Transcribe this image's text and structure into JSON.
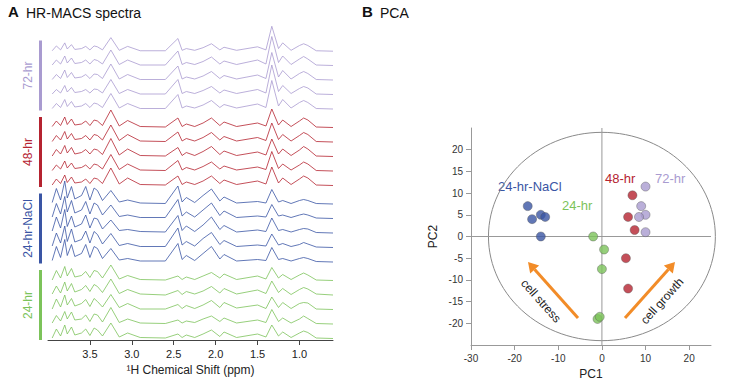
{
  "chart_data": [
    {
      "type": "line",
      "panel_label": "A",
      "title": "HR-MACS spectra",
      "x_label": "¹H Chemical Shift (ppm)",
      "x": [
        3.95,
        3.9,
        3.85,
        3.8,
        3.77,
        3.72,
        3.68,
        3.6,
        3.55,
        3.5,
        3.45,
        3.41,
        3.35,
        3.25,
        3.15,
        3.05,
        2.9,
        2.6,
        2.45,
        2.4,
        2.35,
        2.25,
        2.15,
        2.05,
        1.95,
        1.9,
        1.75,
        1.5,
        1.4,
        1.33,
        1.25,
        1.2,
        1.1,
        1.0,
        0.95,
        0.9,
        0.8,
        0.6
      ],
      "xlim": [
        4.0,
        0.6
      ],
      "xticks": [
        3.5,
        {
          "value": 3,
          "label": "3.0"
        },
        2.5,
        {
          "value": 2,
          "label": "2.0"
        },
        1.5,
        {
          "value": 1,
          "label": "1.0"
        }
      ],
      "ylim": [
        0,
        120
      ],
      "tick_labels": "x",
      "grid": false,
      "series": [
        {
          "name": "24-hr",
          "color": "#7cc35a",
          "values": [
            [
              4,
              22,
              8,
              30,
              12,
              26,
              10,
              14,
              22,
              9,
              24,
              20,
              8,
              34,
              6,
              14,
              5,
              4,
              12,
              5,
              10,
              5,
              12,
              20,
              7,
              16,
              5,
              12,
              6,
              30,
              8,
              16,
              5,
              14,
              18,
              15,
              4,
              3
            ],
            [
              5,
              20,
              9,
              28,
              13,
              27,
              11,
              13,
              21,
              8,
              23,
              21,
              7,
              36,
              6,
              13,
              5,
              4,
              11,
              5,
              9,
              6,
              13,
              19,
              8,
              15,
              5,
              11,
              6,
              32,
              8,
              15,
              5,
              13,
              19,
              14,
              4,
              3
            ],
            [
              4,
              24,
              8,
              32,
              12,
              25,
              10,
              15,
              23,
              9,
              25,
              19,
              8,
              33,
              7,
              15,
              4,
              4,
              13,
              5,
              11,
              5,
              12,
              21,
              7,
              17,
              6,
              12,
              5,
              28,
              7,
              17,
              5,
              15,
              17,
              16,
              4,
              3
            ],
            [
              5,
              21,
              7,
              29,
              11,
              26,
              9,
              14,
              22,
              10,
              24,
              20,
              8,
              35,
              6,
              14,
              5,
              3,
              12,
              4,
              10,
              5,
              11,
              20,
              7,
              16,
              5,
              13,
              6,
              31,
              8,
              16,
              4,
              14,
              18,
              15,
              5,
              3
            ],
            [
              4,
              23,
              8,
              31,
              12,
              27,
              10,
              13,
              21,
              9,
              23,
              21,
              8,
              34,
              6,
              13,
              5,
              4,
              12,
              5,
              10,
              5,
              12,
              19,
              8,
              16,
              5,
              12,
              6,
              29,
              8,
              15,
              5,
              14,
              18,
              14,
              4,
              3
            ]
          ]
        },
        {
          "name": "24-hr-NaCl",
          "color": "#3a55a4",
          "values": [
            [
              6,
              34,
              12,
              48,
              16,
              38,
              14,
              20,
              38,
              12,
              34,
              30,
              10,
              30,
              7,
              10,
              5,
              5,
              40,
              8,
              16,
              6,
              20,
              34,
              9,
              18,
              5,
              8,
              6,
              32,
              8,
              10,
              5,
              10,
              12,
              10,
              4,
              3
            ],
            [
              6,
              32,
              12,
              46,
              15,
              40,
              14,
              19,
              36,
              12,
              35,
              29,
              10,
              31,
              7,
              11,
              5,
              5,
              42,
              8,
              15,
              6,
              21,
              33,
              9,
              17,
              5,
              8,
              6,
              30,
              8,
              11,
              5,
              9,
              13,
              10,
              4,
              3
            ],
            [
              7,
              35,
              13,
              50,
              16,
              37,
              15,
              21,
              39,
              13,
              33,
              31,
              11,
              29,
              8,
              10,
              6,
              5,
              38,
              8,
              17,
              6,
              19,
              35,
              10,
              18,
              5,
              9,
              6,
              33,
              8,
              10,
              5,
              10,
              12,
              11,
              4,
              3
            ],
            [
              6,
              33,
              12,
              47,
              16,
              39,
              14,
              20,
              37,
              12,
              34,
              30,
              10,
              30,
              7,
              10,
              5,
              5,
              41,
              8,
              16,
              6,
              20,
              34,
              9,
              18,
              5,
              8,
              6,
              31,
              8,
              10,
              5,
              10,
              12,
              10,
              4,
              3
            ],
            [
              6,
              34,
              11,
              49,
              15,
              38,
              13,
              20,
              38,
              11,
              35,
              30,
              10,
              30,
              7,
              11,
              5,
              4,
              39,
              7,
              16,
              6,
              20,
              33,
              9,
              17,
              5,
              8,
              5,
              32,
              7,
              10,
              4,
              10,
              12,
              10,
              4,
              3
            ]
          ]
        },
        {
          "name": "48-hr",
          "color": "#b52330",
          "values": [
            [
              4,
              16,
              7,
              24,
              9,
              20,
              8,
              10,
              16,
              7,
              18,
              16,
              7,
              38,
              6,
              18,
              5,
              4,
              22,
              5,
              10,
              5,
              12,
              22,
              7,
              14,
              5,
              12,
              6,
              40,
              8,
              18,
              5,
              16,
              22,
              18,
              4,
              3
            ],
            [
              4,
              15,
              7,
              23,
              9,
              19,
              8,
              10,
              15,
              7,
              17,
              15,
              7,
              36,
              6,
              17,
              5,
              4,
              24,
              5,
              10,
              5,
              12,
              21,
              7,
              13,
              5,
              11,
              6,
              42,
              8,
              17,
              5,
              15,
              21,
              17,
              4,
              3
            ],
            [
              4,
              17,
              8,
              25,
              10,
              21,
              8,
              11,
              17,
              8,
              18,
              16,
              7,
              39,
              6,
              18,
              5,
              4,
              21,
              5,
              11,
              5,
              13,
              23,
              7,
              14,
              5,
              12,
              6,
              38,
              8,
              18,
              5,
              16,
              23,
              18,
              4,
              3
            ],
            [
              4,
              16,
              7,
              24,
              9,
              20,
              8,
              10,
              16,
              7,
              18,
              16,
              7,
              37,
              6,
              18,
              5,
              4,
              23,
              5,
              10,
              5,
              12,
              22,
              7,
              14,
              5,
              12,
              6,
              41,
              8,
              18,
              5,
              16,
              22,
              18,
              4,
              3
            ],
            [
              5,
              16,
              7,
              24,
              9,
              20,
              8,
              10,
              16,
              7,
              18,
              16,
              7,
              38,
              6,
              17,
              5,
              4,
              22,
              5,
              10,
              5,
              12,
              22,
              7,
              14,
              5,
              12,
              6,
              40,
              8,
              18,
              5,
              16,
              22,
              18,
              4,
              3
            ]
          ]
        },
        {
          "name": "72-hr",
          "color": "#a99bd0",
          "values": [
            [
              4,
              14,
              6,
              22,
              8,
              18,
              7,
              9,
              14,
              6,
              15,
              13,
              6,
              34,
              5,
              14,
              4,
              4,
              32,
              5,
              9,
              5,
              11,
              20,
              6,
              12,
              5,
              13,
              6,
              60,
              9,
              22,
              5,
              16,
              20,
              16,
              4,
              3
            ],
            [
              4,
              13,
              6,
              21,
              8,
              17,
              7,
              9,
              13,
              6,
              14,
              13,
              6,
              33,
              5,
              13,
              4,
              4,
              33,
              5,
              9,
              5,
              11,
              19,
              6,
              12,
              5,
              13,
              6,
              62,
              9,
              21,
              5,
              15,
              19,
              16,
              4,
              3
            ],
            [
              4,
              14,
              6,
              23,
              8,
              18,
              7,
              9,
              14,
              6,
              15,
              14,
              6,
              35,
              5,
              14,
              4,
              4,
              31,
              5,
              9,
              5,
              11,
              20,
              6,
              12,
              5,
              13,
              6,
              58,
              9,
              22,
              5,
              16,
              20,
              16,
              4,
              3
            ],
            [
              4,
              14,
              6,
              22,
              8,
              18,
              7,
              9,
              14,
              6,
              15,
              13,
              6,
              34,
              5,
              14,
              4,
              4,
              32,
              5,
              9,
              5,
              11,
              20,
              6,
              12,
              5,
              14,
              6,
              61,
              9,
              22,
              5,
              16,
              21,
              16,
              4,
              3
            ],
            [
              4,
              15,
              6,
              22,
              8,
              18,
              7,
              9,
              14,
              6,
              15,
              13,
              6,
              34,
              5,
              14,
              4,
              4,
              32,
              5,
              9,
              5,
              11,
              20,
              6,
              12,
              5,
              13,
              6,
              60,
              9,
              22,
              5,
              16,
              20,
              16,
              4,
              3
            ]
          ]
        }
      ]
    },
    {
      "type": "scatter",
      "panel_label": "B",
      "title": "PCA",
      "x_label": "PC1",
      "y_label": "PC2",
      "xlim": [
        -30,
        25
      ],
      "xticks": [
        -30,
        -20,
        -10,
        0,
        10,
        20
      ],
      "ylim": [
        -25,
        25
      ],
      "yticks": [
        -20,
        -15,
        -10,
        -5,
        0,
        5,
        10,
        15,
        20
      ],
      "grid": false,
      "marker": "circle",
      "ellipse_radii": [
        26,
        24
      ],
      "annotations": [
        "cell stress",
        "cell growth"
      ],
      "series": [
        {
          "name": "24-hr-NaCl",
          "color": "#3a55a4",
          "values": [
            [
              -17,
              7
            ],
            [
              -14,
              5
            ],
            [
              -16,
              4
            ],
            [
              -13,
              4.5
            ],
            [
              -14,
              0
            ]
          ]
        },
        {
          "name": "24-hr",
          "color": "#7cc35a",
          "values": [
            [
              -2,
              0
            ],
            [
              0.5,
              -3
            ],
            [
              0,
              -7.5
            ],
            [
              -1,
              -19
            ],
            [
              -0.5,
              -18.5
            ]
          ]
        },
        {
          "name": "48-hr",
          "color": "#b52330",
          "values": [
            [
              7,
              9.5
            ],
            [
              6,
              4.5
            ],
            [
              7.5,
              1.5
            ],
            [
              5.5,
              -5
            ],
            [
              6,
              -12
            ]
          ]
        },
        {
          "name": "72-hr",
          "color": "#a99bd0",
          "values": [
            [
              10,
              11.5
            ],
            [
              9,
              7
            ],
            [
              10,
              5
            ],
            [
              8.5,
              4.5
            ],
            [
              10,
              1
            ]
          ]
        }
      ]
    }
  ]
}
